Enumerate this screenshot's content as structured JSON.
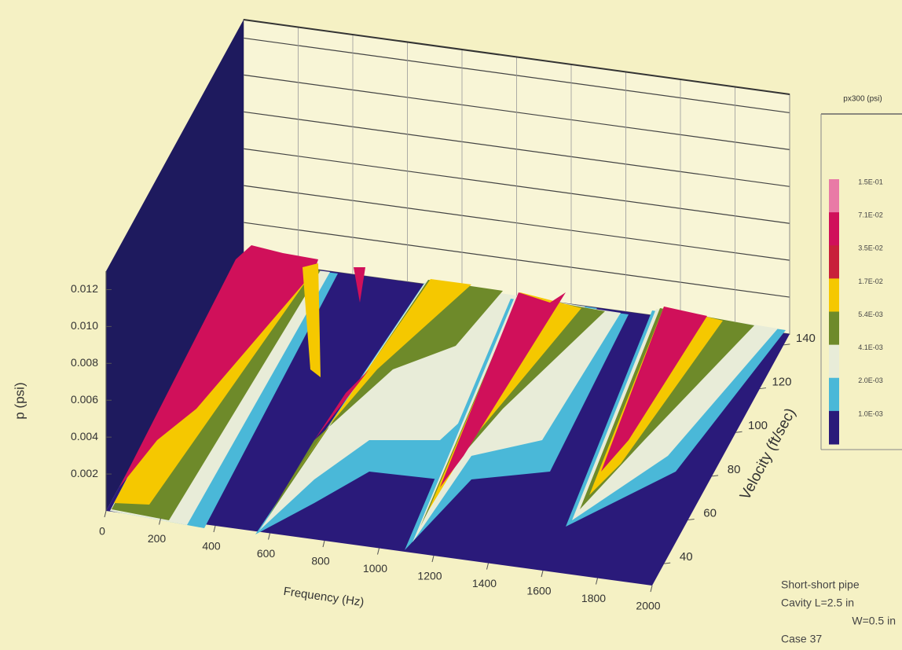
{
  "chart_data": {
    "type": "surface3d",
    "x_label": "Frequency (Hz)",
    "y_label": "Velocity (ft/sec)",
    "z_label": "p (psi)",
    "xlim": [
      0,
      2000
    ],
    "xticks": [
      0,
      200,
      400,
      600,
      800,
      1000,
      1200,
      1400,
      1600,
      1800,
      2000
    ],
    "ylim": [
      30,
      145
    ],
    "yticks": [
      40,
      60,
      80,
      100,
      120,
      140
    ],
    "zlim": [
      0,
      0.013
    ],
    "zticks": [
      0.002,
      0.004,
      0.006,
      0.008,
      {
        "value": 0.01,
        "label": "0.010"
      },
      0.012
    ],
    "grid": true,
    "colorbar": {
      "title": "px300 (psi)",
      "levels": [
        {
          "label": "1.5E-01",
          "color": "#e97aa6"
        },
        {
          "label": "7.1E-02",
          "color": "#d0105a"
        },
        {
          "label": "3.5E-02",
          "color": "#c8203a"
        },
        {
          "label": "1.7E-02",
          "color": "#f5c800"
        },
        {
          "label": "5.4E-03",
          "color": "#6e8a2a"
        },
        {
          "label": "4.1E-03",
          "color": "#e8ecd8"
        },
        {
          "label": "2.0E-03",
          "color": "#4ab8d8"
        },
        {
          "label": "1.0E-03",
          "color": "#2a1a7a"
        }
      ]
    },
    "annotations": [
      "Short-short pipe",
      "Cavity L=2.5 in",
      "W=0.5 in",
      "Case 37"
    ]
  }
}
